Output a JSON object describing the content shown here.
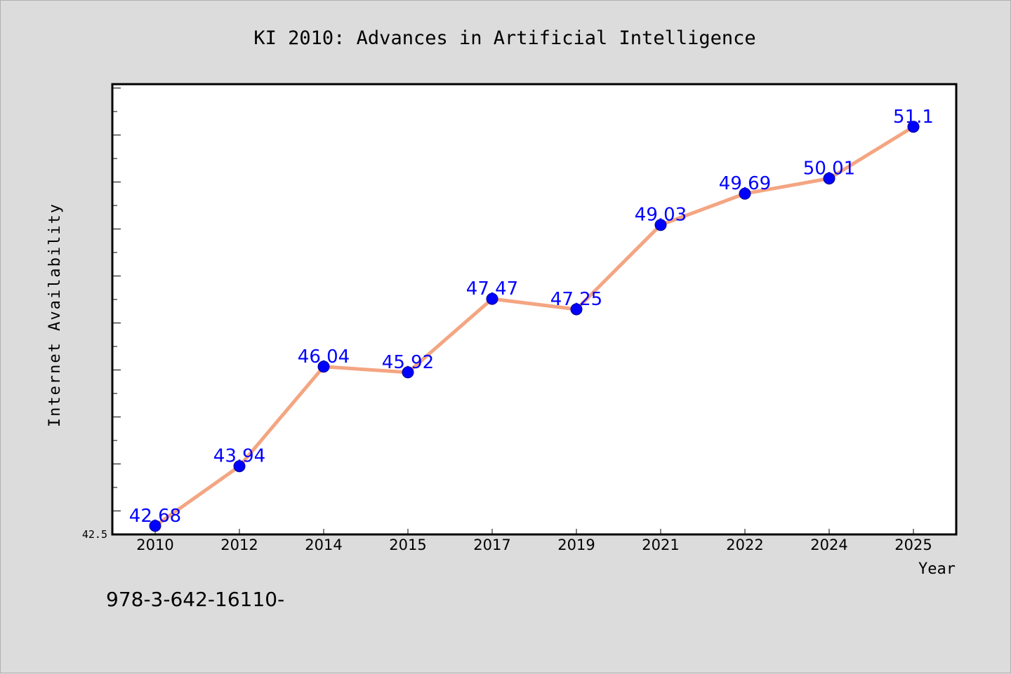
{
  "chart_data": {
    "type": "line",
    "title": "KI 2010: Advances in Artificial Intelligence",
    "xlabel": "Year",
    "ylabel": "Internet Availability",
    "categories": [
      "2010",
      "2012",
      "2014",
      "2015",
      "2017",
      "2019",
      "2021",
      "2022",
      "2024",
      "2025"
    ],
    "series": [
      {
        "values": [
          42.68,
          43.94,
          46.04,
          45.92,
          47.47,
          47.25,
          49.03,
          49.69,
          50.01,
          51.1
        ],
        "data_labels": [
          "42.68",
          "43.94",
          "46.04",
          "45.92",
          "47.47",
          "47.25",
          "49.03",
          "49.69",
          "50.01",
          "51.1"
        ]
      }
    ],
    "y_tick_label": "42.5",
    "ylim": [
      42.5,
      52.0
    ],
    "grid": false,
    "legend": "none",
    "colors": {
      "line": "#f4a582",
      "marker": "#0000ff",
      "data_label": "#0000ff",
      "background": "#dcdcdc",
      "plot_background": "#ffffff"
    }
  },
  "footer_text": "978-3-642-16110-"
}
